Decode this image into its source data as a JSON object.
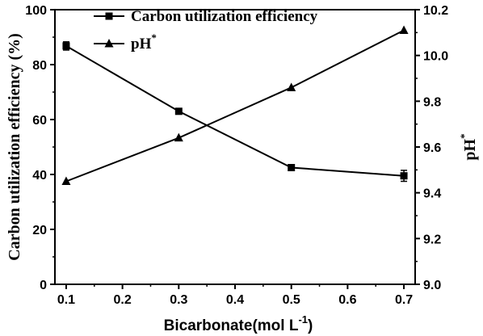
{
  "chart_data": {
    "type": "line",
    "x": [
      0.1,
      0.3,
      0.5,
      0.7
    ],
    "xlabel_main": "Bicarbonate(mol L",
    "xlabel_sup": "-1",
    "xlabel_close": ")",
    "ylabel": "Carbon utilization efficiency (%)",
    "y2label_main": "pH",
    "y2label_sup": "*",
    "xlim": [
      0.08,
      0.72
    ],
    "ylim": [
      0,
      100
    ],
    "y2lim": [
      9.0,
      10.2
    ],
    "xticks": [
      "0.1",
      "0.2",
      "0.3",
      "0.4",
      "0.5",
      "0.6",
      "0.7"
    ],
    "yticks": [
      "0",
      "20",
      "40",
      "60",
      "80",
      "100"
    ],
    "y2ticks": [
      "9.0",
      "9.2",
      "9.4",
      "9.6",
      "9.8",
      "10.0",
      "10.2"
    ],
    "legend_position": "top-left",
    "series": [
      {
        "name_main": "Carbon utilization efficiency",
        "name_sup": "",
        "marker": "square",
        "axis": "left",
        "values": [
          86.8,
          63.0,
          42.5,
          39.5
        ],
        "errors": [
          1.5,
          0.8,
          0.9,
          2.0
        ]
      },
      {
        "name_main": "pH",
        "name_sup": "*",
        "marker": "triangle",
        "axis": "right",
        "values": [
          9.45,
          9.64,
          9.86,
          10.11
        ],
        "errors": [
          0,
          0,
          0,
          0
        ]
      }
    ]
  }
}
